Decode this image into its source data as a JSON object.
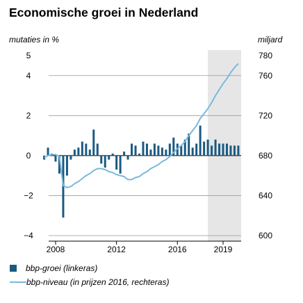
{
  "chart_data": {
    "type": "bar+line",
    "title": "Economische groei in Nederland",
    "left_axis": {
      "label": "mutaties in %",
      "ticks": [
        "5",
        "4",
        "2",
        "0",
        "−2",
        "−4"
      ],
      "ylim": [
        -4,
        5
      ]
    },
    "right_axis": {
      "label": "miljard",
      "ticks": [
        "780",
        "760",
        "720",
        "680",
        "640",
        "600"
      ],
      "ylim": [
        600,
        780
      ]
    },
    "x_ticks": [
      "2008",
      "2012",
      "2016",
      "2019"
    ],
    "forecast_shading": {
      "from": 2018.0,
      "to": 2020.25
    },
    "grid": "horizontal",
    "series": [
      {
        "name": "bbp-groei (linkeras)",
        "kind": "bar",
        "axis": "left",
        "x": [
          2007.25,
          2007.5,
          2007.75,
          2008.0,
          2008.25,
          2008.5,
          2008.75,
          2009.0,
          2009.25,
          2009.5,
          2009.75,
          2010.0,
          2010.25,
          2010.5,
          2010.75,
          2011.0,
          2011.25,
          2011.5,
          2011.75,
          2012.0,
          2012.25,
          2012.5,
          2012.75,
          2013.0,
          2013.25,
          2013.5,
          2013.75,
          2014.0,
          2014.25,
          2014.5,
          2014.75,
          2015.0,
          2015.25,
          2015.5,
          2015.75,
          2016.0,
          2016.25,
          2016.5,
          2016.75,
          2017.0,
          2017.25,
          2017.5,
          2017.75,
          2018.0,
          2018.25,
          2018.5,
          2018.75,
          2019.0,
          2019.25,
          2019.5,
          2019.75,
          2020.0
        ],
        "values": [
          -0.2,
          0.4,
          0.1,
          -0.3,
          -0.9,
          -3.1,
          -1.0,
          -0.2,
          0.3,
          0.4,
          0.7,
          0.6,
          0.3,
          1.3,
          0.6,
          -0.4,
          -0.6,
          -0.2,
          0.1,
          -0.7,
          -0.9,
          0.2,
          -0.2,
          0.6,
          0.5,
          0.1,
          0.7,
          0.6,
          0.3,
          0.6,
          0.5,
          0.4,
          0.3,
          0.6,
          0.9,
          0.6,
          0.5,
          0.8,
          1.1,
          0.4,
          0.6,
          1.5,
          0.7,
          0.8,
          0.5,
          0.8,
          0.6,
          0.6,
          0.6,
          0.5,
          0.5,
          0.5
        ]
      },
      {
        "name": "bbp-niveau (in prijzen 2016, rechteras)",
        "kind": "line",
        "axis": "right",
        "x": [
          2007.25,
          2007.5,
          2007.75,
          2008.0,
          2008.25,
          2008.5,
          2008.75,
          2009.0,
          2009.25,
          2009.5,
          2009.75,
          2010.0,
          2010.25,
          2010.5,
          2010.75,
          2011.0,
          2011.25,
          2011.5,
          2011.75,
          2012.0,
          2012.25,
          2012.5,
          2012.75,
          2013.0,
          2013.25,
          2013.5,
          2013.75,
          2014.0,
          2014.25,
          2014.5,
          2014.75,
          2015.0,
          2015.25,
          2015.5,
          2015.75,
          2016.0,
          2016.25,
          2016.5,
          2016.75,
          2017.0,
          2017.25,
          2017.5,
          2017.75,
          2018.0,
          2018.25,
          2018.5,
          2018.75,
          2019.0,
          2019.25,
          2019.5,
          2019.75,
          2020.0
        ],
        "values": [
          678,
          680,
          681,
          681,
          679,
          650,
          648,
          649,
          652,
          654,
          657,
          660,
          662,
          665,
          667,
          667,
          666,
          664,
          663,
          661,
          660,
          659,
          656,
          656,
          658,
          659,
          662,
          664,
          667,
          669,
          671,
          674,
          676,
          679,
          683,
          687,
          690,
          694,
          700,
          705,
          710,
          717,
          722,
          727,
          733,
          740,
          746,
          752,
          757,
          763,
          768,
          772
        ]
      }
    ],
    "legend": [
      {
        "label": "bbp-groei (linkeras)",
        "marker": "square"
      },
      {
        "label": "bbp-niveau (in prijzen 2016, rechteras)",
        "marker": "line"
      }
    ],
    "colors": {
      "bar": "#1a5a82",
      "line": "#79b9dc",
      "forecast": "#e6e6e6",
      "grid": "#999999"
    }
  }
}
